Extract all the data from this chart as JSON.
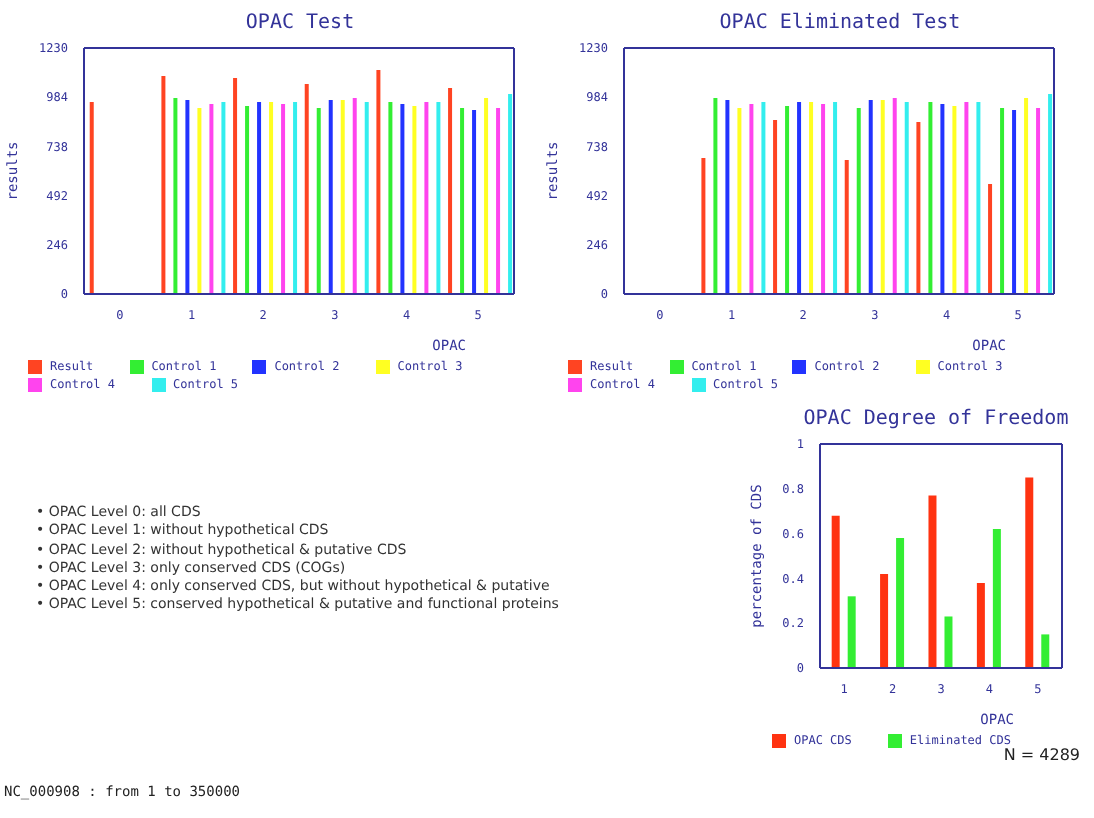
{
  "chart_data": [
    {
      "type": "bar",
      "title": "OPAC Test",
      "xlabel": "OPAC",
      "ylabel": "results",
      "categories": [
        "0",
        "1",
        "2",
        "3",
        "4",
        "5"
      ],
      "ylim": [
        0,
        1230
      ],
      "yticks": [
        0,
        246,
        492,
        738,
        984,
        1230
      ],
      "grid": false,
      "legend": "bottom left",
      "series": [
        {
          "name": "Result",
          "color": "#ff4422",
          "values": [
            960,
            1090,
            1080,
            1050,
            1120,
            1030
          ]
        },
        {
          "name": "Control 1",
          "color": "#33ee33",
          "values": [
            null,
            980,
            940,
            930,
            960,
            930
          ]
        },
        {
          "name": "Control 2",
          "color": "#2233ff",
          "values": [
            null,
            970,
            960,
            970,
            950,
            920
          ]
        },
        {
          "name": "Control 3",
          "color": "#ffff22",
          "values": [
            null,
            930,
            960,
            970,
            940,
            980
          ]
        },
        {
          "name": "Control 4",
          "color": "#ff44ee",
          "values": [
            null,
            950,
            950,
            980,
            960,
            930
          ]
        },
        {
          "name": "Control 5",
          "color": "#33eeee",
          "values": [
            null,
            960,
            960,
            960,
            960,
            1000
          ]
        }
      ]
    },
    {
      "type": "bar",
      "title": "OPAC Eliminated Test",
      "xlabel": "OPAC",
      "ylabel": "results",
      "categories": [
        "0",
        "1",
        "2",
        "3",
        "4",
        "5"
      ],
      "ylim": [
        0,
        1230
      ],
      "yticks": [
        0,
        246,
        492,
        738,
        984,
        1230
      ],
      "grid": false,
      "legend": "bottom left",
      "series": [
        {
          "name": "Result",
          "color": "#ff4422",
          "values": [
            null,
            680,
            870,
            670,
            860,
            550
          ]
        },
        {
          "name": "Control 1",
          "color": "#33ee33",
          "values": [
            null,
            980,
            940,
            930,
            960,
            930
          ]
        },
        {
          "name": "Control 2",
          "color": "#2233ff",
          "values": [
            null,
            970,
            960,
            970,
            950,
            920
          ]
        },
        {
          "name": "Control 3",
          "color": "#ffff22",
          "values": [
            null,
            930,
            960,
            970,
            940,
            980
          ]
        },
        {
          "name": "Control 4",
          "color": "#ff44ee",
          "values": [
            null,
            950,
            950,
            980,
            960,
            930
          ]
        },
        {
          "name": "Control 5",
          "color": "#33eeee",
          "values": [
            null,
            960,
            960,
            960,
            960,
            1000
          ]
        }
      ]
    },
    {
      "type": "other",
      "annotations": [
        "• OPAC Level 0: all CDS",
        "• OPAC Level 1: without hypothetical CDS",
        "• OPAC Level 2: without hypothetical & putative CDS",
        "• OPAC Level 3: only conserved CDS (COGs)",
        "• OPAC Level 4: only conserved CDS, but without hypothetical & putative",
        "• OPAC Level 5: conserved hypothetical & putative and functional proteins",
        "NC_000908 : from 1 to 350000"
      ]
    },
    {
      "type": "bar",
      "title": "OPAC Degree of Freedom",
      "xlabel": "OPAC",
      "ylabel": "percentage of CDS",
      "categories": [
        "1",
        "2",
        "3",
        "4",
        "5"
      ],
      "ylim": [
        0,
        1
      ],
      "yticks": [
        0,
        0.2,
        0.4,
        0.6,
        0.8,
        1
      ],
      "grid": false,
      "legend": "bottom left",
      "annotations": [
        "N = 4289"
      ],
      "series": [
        {
          "name": "OPAC CDS",
          "color": "#ff3311",
          "values": [
            0.68,
            0.42,
            0.77,
            0.38,
            0.85
          ]
        },
        {
          "name": "Eliminated CDS",
          "color": "#33ee33",
          "values": [
            0.32,
            0.58,
            0.23,
            0.62,
            0.15
          ]
        }
      ]
    }
  ]
}
